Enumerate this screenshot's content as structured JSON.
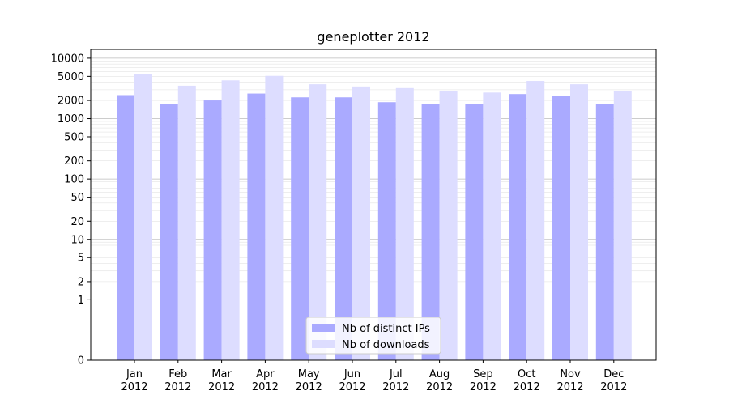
{
  "chart_data": {
    "type": "bar",
    "title": "geneplotter 2012",
    "xlabel": "",
    "ylabel": "",
    "yscale": "symlog",
    "ylim": [
      0,
      14000
    ],
    "yticks": [
      0,
      1,
      2,
      5,
      10,
      20,
      50,
      100,
      200,
      500,
      1000,
      2000,
      5000,
      10000
    ],
    "grid": "horizontal",
    "legend_position": "bottom-center",
    "categories": [
      "Jan\n2012",
      "Feb\n2012",
      "Mar\n2012",
      "Apr\n2012",
      "May\n2012",
      "Jun\n2012",
      "Jul\n2012",
      "Aug\n2012",
      "Sep\n2012",
      "Oct\n2012",
      "Nov\n2012",
      "Dec\n2012"
    ],
    "series": [
      {
        "name": "Nb of distinct IPs",
        "color": "#aaaaff",
        "values": [
          2450,
          1770,
          2000,
          2600,
          2250,
          2250,
          1870,
          1770,
          1720,
          2550,
          2400,
          1720
        ]
      },
      {
        "name": "Nb of downloads",
        "color": "#ddddff",
        "values": [
          5400,
          3500,
          4300,
          5100,
          3700,
          3400,
          3200,
          2900,
          2700,
          4200,
          3700,
          2850
        ]
      }
    ]
  }
}
